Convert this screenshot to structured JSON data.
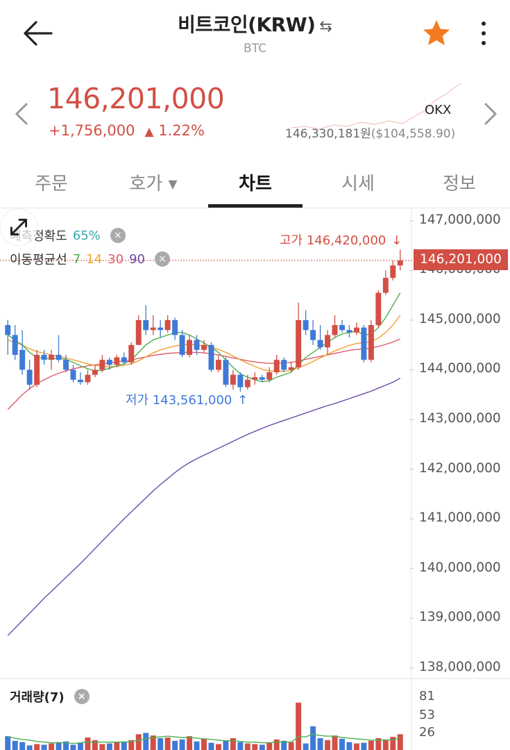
{
  "header": {
    "title": "비트코인(KRW)",
    "swap_icon": "⇆",
    "subtitle": "BTC"
  },
  "price": {
    "current": "146,201,000",
    "change": "+1,756,000",
    "change_arrow": "▲",
    "change_pct": "1.22%",
    "exchange": "OKX",
    "ref_krw": "146,330,181원",
    "ref_usd": "($104,558.90)"
  },
  "tabs": [
    {
      "label": "주문"
    },
    {
      "label": "호가 ▾"
    },
    {
      "label": "차트"
    },
    {
      "label": "시세"
    },
    {
      "label": "정보"
    }
  ],
  "chart": {
    "prediction_label": "예측정확도",
    "prediction_value": "65%",
    "ma_label": "이동평균선",
    "ma_periods": [
      "7",
      "14",
      "30",
      "90"
    ],
    "ma_colors": [
      "#4caf50",
      "#f0a030",
      "#e05a6a",
      "#6a4aa8"
    ],
    "high_label": "고가 146,420,000",
    "high_arrow": "↓",
    "low_label": "저가 143,561,000",
    "low_arrow": "↑",
    "current_tag": "146,201,000",
    "volume_label": "거래량(7)",
    "close_icon": "×"
  },
  "chart_data": {
    "type": "candlestick",
    "y_ticks": [
      "147,000,000",
      "146,000,000",
      "145,000,000",
      "144,000,000",
      "143,000,000",
      "142,000,000",
      "141,000,000",
      "140,000,000",
      "139,000,000",
      "138,000,000"
    ],
    "ylim": [
      137800000,
      147250000
    ],
    "volume_ticks": [
      "81",
      "53",
      "26"
    ],
    "volume_ylim": [
      0,
      95
    ],
    "up_color": "#d24f45",
    "down_color": "#3f7ad6",
    "candles": [
      [
        144900000,
        144700000,
        145000000,
        144300000
      ],
      [
        144700000,
        144300000,
        144900000,
        144200000
      ],
      [
        144400000,
        144000000,
        144800000,
        143900000
      ],
      [
        144000000,
        143700000,
        144200000,
        143600000
      ],
      [
        143700000,
        144300000,
        144400000,
        143650000
      ],
      [
        144300000,
        144200000,
        144400000,
        144100000
      ],
      [
        144200000,
        144300000,
        144400000,
        144000000
      ],
      [
        144300000,
        144200000,
        144700000,
        144150000
      ],
      [
        144200000,
        144000000,
        144300000,
        143950000
      ],
      [
        144000000,
        143800000,
        144100000,
        143750000
      ],
      [
        143800000,
        143750000,
        143950000,
        143700000
      ],
      [
        143750000,
        143900000,
        144000000,
        143700000
      ],
      [
        143900000,
        144000000,
        144100000,
        143850000
      ],
      [
        144000000,
        144200000,
        144300000,
        143950000
      ],
      [
        144200000,
        144100000,
        144250000,
        144000000
      ],
      [
        144100000,
        144250000,
        144300000,
        144050000
      ],
      [
        144250000,
        144150000,
        144350000,
        144100000
      ],
      [
        144150000,
        144500000,
        144550000,
        144100000
      ],
      [
        144500000,
        145000000,
        145100000,
        144500000
      ],
      [
        145000000,
        144800000,
        145300000,
        144700000
      ],
      [
        144800000,
        144850000,
        145100000,
        144700000
      ],
      [
        144850000,
        144800000,
        145000000,
        144650000
      ],
      [
        144800000,
        145000000,
        145100000,
        144750000
      ],
      [
        145000000,
        144700000,
        145050000,
        144600000
      ],
      [
        144700000,
        144300000,
        144800000,
        144250000
      ],
      [
        144300000,
        144600000,
        144700000,
        144250000
      ],
      [
        144600000,
        144400000,
        144700000,
        144300000
      ],
      [
        144400000,
        144500000,
        144600000,
        144350000
      ],
      [
        144500000,
        144000000,
        144550000,
        143950000
      ],
      [
        144000000,
        144200000,
        144300000,
        143950000
      ],
      [
        144200000,
        143700000,
        144250000,
        143650000
      ],
      [
        143700000,
        143900000,
        144000000,
        143600000
      ],
      [
        143900000,
        143650000,
        143950000,
        143561000
      ],
      [
        143650000,
        143800000,
        143900000,
        143600000
      ],
      [
        143800000,
        143850000,
        143950000,
        143700000
      ],
      [
        143850000,
        143800000,
        143900000,
        143750000
      ],
      [
        143800000,
        143950000,
        144050000,
        143750000
      ],
      [
        143950000,
        144200000,
        144300000,
        143900000
      ],
      [
        144200000,
        144000000,
        144250000,
        143950000
      ],
      [
        144000000,
        144050000,
        144150000,
        143950000
      ],
      [
        144050000,
        145000000,
        145350000,
        144000000
      ],
      [
        145000000,
        144800000,
        145200000,
        144700000
      ],
      [
        144800000,
        144600000,
        145000000,
        144500000
      ],
      [
        144600000,
        144450000,
        144900000,
        144400000
      ],
      [
        144450000,
        144700000,
        144800000,
        144300000
      ],
      [
        144700000,
        144900000,
        145100000,
        144650000
      ],
      [
        144900000,
        144800000,
        145000000,
        144750000
      ],
      [
        144800000,
        144750000,
        144900000,
        144650000
      ],
      [
        144750000,
        144850000,
        144950000,
        144700000
      ],
      [
        144850000,
        144200000,
        144900000,
        144150000
      ],
      [
        144200000,
        144900000,
        145000000,
        144150000
      ],
      [
        144900000,
        145550000,
        145600000,
        144850000
      ],
      [
        145550000,
        145850000,
        146000000,
        145500000
      ],
      [
        145850000,
        146100000,
        146200000,
        145800000
      ],
      [
        146100000,
        146201000,
        146420000,
        146000000
      ]
    ],
    "volumes": [
      21,
      14,
      12,
      7,
      9,
      8,
      10,
      12,
      13,
      8,
      11,
      19,
      15,
      9,
      10,
      12,
      13,
      15,
      24,
      26,
      22,
      18,
      19,
      14,
      16,
      21,
      13,
      17,
      11,
      9,
      14,
      18,
      12,
      10,
      9,
      8,
      11,
      16,
      14,
      12,
      72,
      10,
      36,
      18,
      15,
      22,
      17,
      12,
      10,
      11,
      14,
      18,
      16,
      20,
      24
    ],
    "volume_ma": [
      20,
      18,
      16,
      15,
      13,
      12,
      11,
      11,
      11,
      10,
      11,
      12,
      12,
      12,
      12,
      12,
      12,
      13,
      15,
      17,
      19,
      20,
      21,
      20,
      19,
      19,
      18,
      17,
      16,
      15,
      14,
      14,
      13,
      12,
      12,
      11,
      11,
      12,
      12,
      12,
      20,
      20,
      24,
      22,
      21,
      21,
      19,
      18,
      17,
      16,
      15,
      15,
      15,
      16,
      18
    ],
    "ma7": [
      144700000,
      144600000,
      144500000,
      144350000,
      144250000,
      144230000,
      144220000,
      144230000,
      144210000,
      144150000,
      144080000,
      144020000,
      143980000,
      143990000,
      144030000,
      144080000,
      144120000,
      144200000,
      144350000,
      144500000,
      144600000,
      144650000,
      144700000,
      144750000,
      144750000,
      144700000,
      144620000,
      144540000,
      144450000,
      144350000,
      144200000,
      144050000,
      143920000,
      143850000,
      143800000,
      143760000,
      143780000,
      143850000,
      143900000,
      143950000,
      144100000,
      144250000,
      144350000,
      144450000,
      144550000,
      144650000,
      144720000,
      144750000,
      144780000,
      144700000,
      144720000,
      144850000,
      145050000,
      145300000,
      145550000
    ],
    "ma14": [
      144600000,
      144550000,
      144500000,
      144420000,
      144370000,
      144330000,
      144300000,
      144270000,
      144240000,
      144200000,
      144160000,
      144120000,
      144090000,
      144070000,
      144060000,
      144070000,
      144090000,
      144120000,
      144180000,
      144260000,
      144340000,
      144400000,
      144440000,
      144480000,
      144500000,
      144510000,
      144500000,
      144480000,
      144450000,
      144410000,
      144350000,
      144280000,
      144200000,
      144130000,
      144070000,
      144010000,
      143980000,
      143970000,
      143970000,
      143990000,
      144040000,
      144100000,
      144170000,
      144240000,
      144310000,
      144380000,
      144440000,
      144490000,
      144530000,
      144540000,
      144570000,
      144640000,
      144750000,
      144900000,
      145100000
    ],
    "ma30": [
      143200000,
      143350000,
      143500000,
      143620000,
      143720000,
      143800000,
      143870000,
      143930000,
      143980000,
      144020000,
      144050000,
      144080000,
      144100000,
      144120000,
      144140000,
      144160000,
      144180000,
      144200000,
      144230000,
      144260000,
      144290000,
      144310000,
      144330000,
      144340000,
      144350000,
      144350000,
      144350000,
      144340000,
      144320000,
      144300000,
      144270000,
      144240000,
      144210000,
      144180000,
      144160000,
      144140000,
      144130000,
      144130000,
      144140000,
      144150000,
      144180000,
      144210000,
      144240000,
      144270000,
      144300000,
      144330000,
      144360000,
      144390000,
      144410000,
      144420000,
      144440000,
      144470000,
      144510000,
      144560000,
      144620000
    ],
    "ma90": [
      138650000,
      138800000,
      138950000,
      139100000,
      139250000,
      139400000,
      139540000,
      139680000,
      139820000,
      139960000,
      140100000,
      140250000,
      140400000,
      140550000,
      140700000,
      140850000,
      141000000,
      141140000,
      141280000,
      141420000,
      141560000,
      141690000,
      141810000,
      141930000,
      142040000,
      142130000,
      142210000,
      142280000,
      142350000,
      142420000,
      142490000,
      142560000,
      142630000,
      142700000,
      142760000,
      142820000,
      142880000,
      142930000,
      142980000,
      143030000,
      143080000,
      143130000,
      143180000,
      143230000,
      143280000,
      143320000,
      143370000,
      143420000,
      143470000,
      143520000,
      143570000,
      143630000,
      143690000,
      143750000,
      143830000
    ]
  }
}
